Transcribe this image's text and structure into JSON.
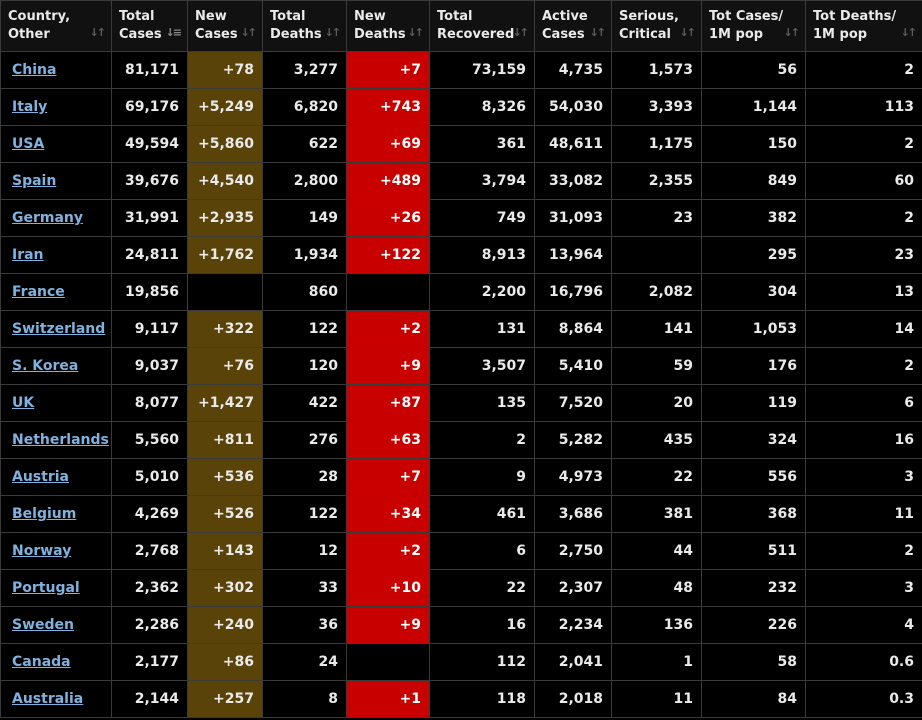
{
  "headers": [
    {
      "line1": "Country,",
      "line2": "Other"
    },
    {
      "line1": "Total",
      "line2": "Cases"
    },
    {
      "line1": "New",
      "line2": "Cases"
    },
    {
      "line1": "Total",
      "line2": "Deaths"
    },
    {
      "line1": "New",
      "line2": "Deaths"
    },
    {
      "line1": "Total",
      "line2": "Recovered"
    },
    {
      "line1": "Active",
      "line2": "Cases"
    },
    {
      "line1": "Serious,",
      "line2": "Critical"
    },
    {
      "line1": "Tot Cases/",
      "line2": "1M pop"
    },
    {
      "line1": "Tot Deaths/",
      "line2": "1M pop"
    }
  ],
  "colors": {
    "background": "#000000",
    "link": "#7fb2df",
    "new_cases_bg": "#5a4308",
    "new_deaths_bg": "#c80000"
  },
  "rows": [
    {
      "country": "China",
      "total_cases": "81,171",
      "new_cases": "+78",
      "total_deaths": "3,277",
      "new_deaths": "+7",
      "total_recovered": "73,159",
      "active_cases": "4,735",
      "serious_critical": "1,573",
      "cases_per_1m": "56",
      "deaths_per_1m": "2"
    },
    {
      "country": "Italy",
      "total_cases": "69,176",
      "new_cases": "+5,249",
      "total_deaths": "6,820",
      "new_deaths": "+743",
      "total_recovered": "8,326",
      "active_cases": "54,030",
      "serious_critical": "3,393",
      "cases_per_1m": "1,144",
      "deaths_per_1m": "113"
    },
    {
      "country": "USA",
      "total_cases": "49,594",
      "new_cases": "+5,860",
      "total_deaths": "622",
      "new_deaths": "+69",
      "total_recovered": "361",
      "active_cases": "48,611",
      "serious_critical": "1,175",
      "cases_per_1m": "150",
      "deaths_per_1m": "2"
    },
    {
      "country": "Spain",
      "total_cases": "39,676",
      "new_cases": "+4,540",
      "total_deaths": "2,800",
      "new_deaths": "+489",
      "total_recovered": "3,794",
      "active_cases": "33,082",
      "serious_critical": "2,355",
      "cases_per_1m": "849",
      "deaths_per_1m": "60"
    },
    {
      "country": "Germany",
      "total_cases": "31,991",
      "new_cases": "+2,935",
      "total_deaths": "149",
      "new_deaths": "+26",
      "total_recovered": "749",
      "active_cases": "31,093",
      "serious_critical": "23",
      "cases_per_1m": "382",
      "deaths_per_1m": "2"
    },
    {
      "country": "Iran",
      "total_cases": "24,811",
      "new_cases": "+1,762",
      "total_deaths": "1,934",
      "new_deaths": "+122",
      "total_recovered": "8,913",
      "active_cases": "13,964",
      "serious_critical": "",
      "cases_per_1m": "295",
      "deaths_per_1m": "23"
    },
    {
      "country": "France",
      "total_cases": "19,856",
      "new_cases": "",
      "total_deaths": "860",
      "new_deaths": "",
      "total_recovered": "2,200",
      "active_cases": "16,796",
      "serious_critical": "2,082",
      "cases_per_1m": "304",
      "deaths_per_1m": "13"
    },
    {
      "country": "Switzerland",
      "total_cases": "9,117",
      "new_cases": "+322",
      "total_deaths": "122",
      "new_deaths": "+2",
      "total_recovered": "131",
      "active_cases": "8,864",
      "serious_critical": "141",
      "cases_per_1m": "1,053",
      "deaths_per_1m": "14"
    },
    {
      "country": "S. Korea",
      "total_cases": "9,037",
      "new_cases": "+76",
      "total_deaths": "120",
      "new_deaths": "+9",
      "total_recovered": "3,507",
      "active_cases": "5,410",
      "serious_critical": "59",
      "cases_per_1m": "176",
      "deaths_per_1m": "2"
    },
    {
      "country": "UK",
      "total_cases": "8,077",
      "new_cases": "+1,427",
      "total_deaths": "422",
      "new_deaths": "+87",
      "total_recovered": "135",
      "active_cases": "7,520",
      "serious_critical": "20",
      "cases_per_1m": "119",
      "deaths_per_1m": "6"
    },
    {
      "country": "Netherlands",
      "total_cases": "5,560",
      "new_cases": "+811",
      "total_deaths": "276",
      "new_deaths": "+63",
      "total_recovered": "2",
      "active_cases": "5,282",
      "serious_critical": "435",
      "cases_per_1m": "324",
      "deaths_per_1m": "16"
    },
    {
      "country": "Austria",
      "total_cases": "5,010",
      "new_cases": "+536",
      "total_deaths": "28",
      "new_deaths": "+7",
      "total_recovered": "9",
      "active_cases": "4,973",
      "serious_critical": "22",
      "cases_per_1m": "556",
      "deaths_per_1m": "3"
    },
    {
      "country": "Belgium",
      "total_cases": "4,269",
      "new_cases": "+526",
      "total_deaths": "122",
      "new_deaths": "+34",
      "total_recovered": "461",
      "active_cases": "3,686",
      "serious_critical": "381",
      "cases_per_1m": "368",
      "deaths_per_1m": "11"
    },
    {
      "country": "Norway",
      "total_cases": "2,768",
      "new_cases": "+143",
      "total_deaths": "12",
      "new_deaths": "+2",
      "total_recovered": "6",
      "active_cases": "2,750",
      "serious_critical": "44",
      "cases_per_1m": "511",
      "deaths_per_1m": "2"
    },
    {
      "country": "Portugal",
      "total_cases": "2,362",
      "new_cases": "+302",
      "total_deaths": "33",
      "new_deaths": "+10",
      "total_recovered": "22",
      "active_cases": "2,307",
      "serious_critical": "48",
      "cases_per_1m": "232",
      "deaths_per_1m": "3"
    },
    {
      "country": "Sweden",
      "total_cases": "2,286",
      "new_cases": "+240",
      "total_deaths": "36",
      "new_deaths": "+9",
      "total_recovered": "16",
      "active_cases": "2,234",
      "serious_critical": "136",
      "cases_per_1m": "226",
      "deaths_per_1m": "4"
    },
    {
      "country": "Canada",
      "total_cases": "2,177",
      "new_cases": "+86",
      "total_deaths": "24",
      "new_deaths": "",
      "total_recovered": "112",
      "active_cases": "2,041",
      "serious_critical": "1",
      "cases_per_1m": "58",
      "deaths_per_1m": "0.6"
    },
    {
      "country": "Australia",
      "total_cases": "2,144",
      "new_cases": "+257",
      "total_deaths": "8",
      "new_deaths": "+1",
      "total_recovered": "118",
      "active_cases": "2,018",
      "serious_critical": "11",
      "cases_per_1m": "84",
      "deaths_per_1m": "0.3"
    }
  ]
}
